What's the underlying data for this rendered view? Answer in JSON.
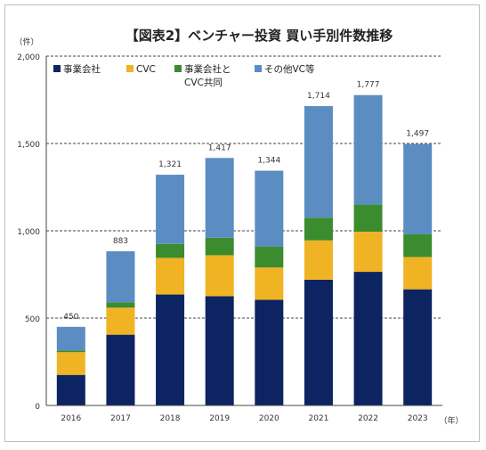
{
  "chart_data": {
    "type": "bar",
    "stacked": true,
    "title": "【図表2】ベンチャー投資 買い手別件数推移",
    "ylabel": "（件）",
    "xlabel": "（年）",
    "ylim": [
      0,
      2000
    ],
    "yticks": [
      "0",
      "500",
      "1,000",
      "1,500",
      "2,000"
    ],
    "ytick_values": [
      0,
      500,
      1000,
      1500,
      2000
    ],
    "grid": "horizontal-dashed",
    "legend_position": "top-left",
    "categories": [
      "2016",
      "2017",
      "2018",
      "2019",
      "2020",
      "2021",
      "2022",
      "2023"
    ],
    "series": [
      {
        "name": "事業会社",
        "color": "#0c2461",
        "values": [
          175,
          405,
          635,
          625,
          605,
          720,
          765,
          665
        ]
      },
      {
        "name": "CVC",
        "color": "#f0b323",
        "values": [
          130,
          155,
          210,
          235,
          185,
          225,
          230,
          185
        ]
      },
      {
        "name": "事業会社と\nCVC共同",
        "color": "#3a8c2f",
        "values": [
          10,
          30,
          80,
          100,
          120,
          130,
          155,
          130
        ]
      },
      {
        "name": "その他VC等",
        "color": "#5b8dc2",
        "values": [
          135,
          293,
          396,
          457,
          434,
          639,
          627,
          517
        ]
      }
    ],
    "totals": [
      450,
      883,
      1321,
      1417,
      1344,
      1714,
      1777,
      1497
    ],
    "total_labels": [
      "450",
      "883",
      "1,321",
      "1,417",
      "1,344",
      "1,714",
      "1,777",
      "1,497"
    ],
    "legend": [
      {
        "line1": "事業会社",
        "line2": ""
      },
      {
        "line1": "CVC",
        "line2": ""
      },
      {
        "line1": "事業会社と",
        "line2": "CVC共同"
      },
      {
        "line1": "その他VC等",
        "line2": ""
      }
    ]
  }
}
